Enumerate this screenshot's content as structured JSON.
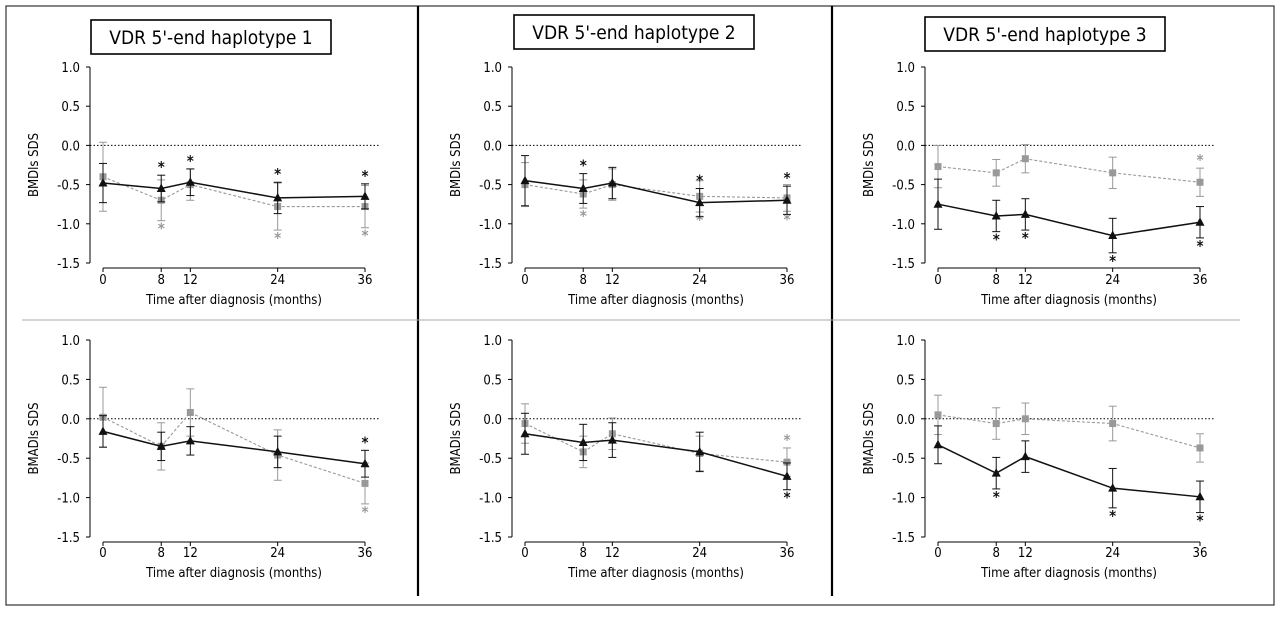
{
  "colors": {
    "black_series": "#111111",
    "gray_series": "#999999",
    "frame": "#333333",
    "divider": "#aaaaaa"
  },
  "chart_data": [
    {
      "type": "line",
      "title": "VDR 5'-end haplotype 1",
      "ylabel": "BMDls SDS",
      "xlabel": "Time after diagnosis (months)",
      "x": [
        0,
        8,
        12,
        24,
        36
      ],
      "ylim": [
        -1.5,
        1.0
      ],
      "yticks": [
        "1.0",
        "0.5",
        "0.0",
        "-0.5",
        "-1.0",
        "-1.5"
      ],
      "xticks": [
        "0",
        "8",
        "12",
        "24",
        "36"
      ],
      "series": [
        {
          "name": "black",
          "marker": "triangle",
          "line": "solid",
          "values": [
            -0.48,
            -0.55,
            -0.47,
            -0.67,
            -0.65
          ],
          "err": [
            0.25,
            0.17,
            0.17,
            0.2,
            0.16
          ],
          "stars": [
            "",
            "above",
            "above",
            "above",
            "above"
          ]
        },
        {
          "name": "gray",
          "marker": "square",
          "line": "dashed",
          "values": [
            -0.4,
            -0.7,
            -0.5,
            -0.78,
            -0.78
          ],
          "err": [
            0.44,
            0.26,
            0.2,
            0.3,
            0.27
          ],
          "stars": [
            "",
            "below",
            "",
            "below",
            "below"
          ]
        }
      ]
    },
    {
      "type": "line",
      "title": "VDR 5'-end haplotype 2",
      "ylabel": "BMDls SDS",
      "xlabel": "Time after diagnosis (months)",
      "x": [
        0,
        8,
        12,
        24,
        36
      ],
      "ylim": [
        -1.5,
        1.0
      ],
      "yticks": [
        "1.0",
        "0.5",
        "0.0",
        "-0.5",
        "-1.0",
        "-1.5"
      ],
      "xticks": [
        "0",
        "8",
        "12",
        "24",
        "36"
      ],
      "series": [
        {
          "name": "black",
          "marker": "triangle",
          "line": "solid",
          "values": [
            -0.45,
            -0.55,
            -0.48,
            -0.73,
            -0.7
          ],
          "err": [
            0.32,
            0.19,
            0.2,
            0.18,
            0.18
          ],
          "stars": [
            "",
            "above",
            "",
            "above",
            "above"
          ]
        },
        {
          "name": "gray",
          "marker": "square",
          "line": "dashed",
          "values": [
            -0.5,
            -0.62,
            -0.5,
            -0.65,
            -0.67
          ],
          "err": [
            0.28,
            0.18,
            0.2,
            0.2,
            0.17
          ],
          "stars": [
            "",
            "below",
            "",
            "below",
            "below"
          ]
        }
      ]
    },
    {
      "type": "line",
      "title": "VDR 5'-end haplotype 3",
      "ylabel": "BMDls SDS",
      "xlabel": "Time after diagnosis (months)",
      "x": [
        0,
        8,
        12,
        24,
        36
      ],
      "ylim": [
        -1.5,
        1.0
      ],
      "yticks": [
        "1.0",
        "0.5",
        "0.0",
        "-0.5",
        "-1.0",
        "-1.5"
      ],
      "xticks": [
        "0",
        "8",
        "12",
        "24",
        "36"
      ],
      "series": [
        {
          "name": "black",
          "marker": "triangle",
          "line": "solid",
          "values": [
            -0.75,
            -0.9,
            -0.88,
            -1.15,
            -0.98
          ],
          "err": [
            0.32,
            0.2,
            0.2,
            0.22,
            0.2
          ],
          "stars": [
            "",
            "below",
            "below",
            "below",
            "below"
          ]
        },
        {
          "name": "gray",
          "marker": "square",
          "line": "dashed",
          "values": [
            -0.27,
            -0.35,
            -0.17,
            -0.35,
            -0.47
          ],
          "err": [
            0.27,
            0.17,
            0.18,
            0.2,
            0.18
          ],
          "stars": [
            "",
            "",
            "",
            "",
            "above"
          ]
        }
      ]
    },
    {
      "type": "line",
      "title": "",
      "ylabel": "BMADls SDS",
      "xlabel": "Time after diagnosis (months)",
      "x": [
        0,
        8,
        12,
        24,
        36
      ],
      "ylim": [
        -1.5,
        1.0
      ],
      "yticks": [
        "1.0",
        "0.5",
        "0.0",
        "-0.5",
        "-1.0",
        "-1.5"
      ],
      "xticks": [
        "0",
        "8",
        "12",
        "24",
        "36"
      ],
      "series": [
        {
          "name": "black",
          "marker": "triangle",
          "line": "solid",
          "values": [
            -0.16,
            -0.35,
            -0.28,
            -0.42,
            -0.57
          ],
          "err": [
            0.2,
            0.18,
            0.18,
            0.2,
            0.17
          ],
          "stars": [
            "",
            "",
            "",
            "",
            "above"
          ]
        },
        {
          "name": "gray",
          "marker": "square",
          "line": "dashed",
          "values": [
            0.02,
            -0.35,
            0.08,
            -0.46,
            -0.82
          ],
          "err": [
            0.38,
            0.3,
            0.3,
            0.32,
            0.26
          ],
          "stars": [
            "",
            "",
            "",
            "",
            "below"
          ]
        }
      ]
    },
    {
      "type": "line",
      "title": "",
      "ylabel": "BMADls SDS",
      "xlabel": "Time after diagnosis (months)",
      "x": [
        0,
        8,
        12,
        24,
        36
      ],
      "ylim": [
        -1.5,
        1.0
      ],
      "yticks": [
        "1.0",
        "0.5",
        "0.0",
        "-0.5",
        "-1.0",
        "-1.5"
      ],
      "xticks": [
        "0",
        "8",
        "12",
        "24",
        "36"
      ],
      "series": [
        {
          "name": "black",
          "marker": "triangle",
          "line": "solid",
          "values": [
            -0.19,
            -0.3,
            -0.27,
            -0.42,
            -0.73
          ],
          "err": [
            0.26,
            0.23,
            0.22,
            0.25,
            0.17
          ],
          "stars": [
            "",
            "",
            "",
            "",
            "below"
          ]
        },
        {
          "name": "gray",
          "marker": "square",
          "line": "dashed",
          "values": [
            -0.06,
            -0.42,
            -0.19,
            -0.44,
            -0.55
          ],
          "err": [
            0.25,
            0.2,
            0.2,
            0.22,
            0.18
          ],
          "stars": [
            "",
            "",
            "",
            "",
            "above"
          ]
        }
      ]
    },
    {
      "type": "line",
      "title": "",
      "ylabel": "BMADls SDS",
      "xlabel": "Time after diagnosis (months)",
      "x": [
        0,
        8,
        12,
        24,
        36
      ],
      "ylim": [
        -1.5,
        1.0
      ],
      "yticks": [
        "1.0",
        "0.5",
        "0.0",
        "-0.5",
        "-1.0",
        "-1.5"
      ],
      "xticks": [
        "0",
        "8",
        "12",
        "24",
        "36"
      ],
      "series": [
        {
          "name": "black",
          "marker": "triangle",
          "line": "solid",
          "values": [
            -0.33,
            -0.69,
            -0.48,
            -0.88,
            -0.99
          ],
          "err": [
            0.24,
            0.2,
            0.2,
            0.25,
            0.2
          ],
          "stars": [
            "",
            "below",
            "",
            "below",
            "below"
          ]
        },
        {
          "name": "gray",
          "marker": "square",
          "line": "dashed",
          "values": [
            0.05,
            -0.06,
            0.0,
            -0.06,
            -0.37
          ],
          "err": [
            0.25,
            0.2,
            0.2,
            0.22,
            0.18
          ],
          "stars": [
            "",
            "",
            "",
            "",
            ""
          ]
        }
      ]
    }
  ]
}
